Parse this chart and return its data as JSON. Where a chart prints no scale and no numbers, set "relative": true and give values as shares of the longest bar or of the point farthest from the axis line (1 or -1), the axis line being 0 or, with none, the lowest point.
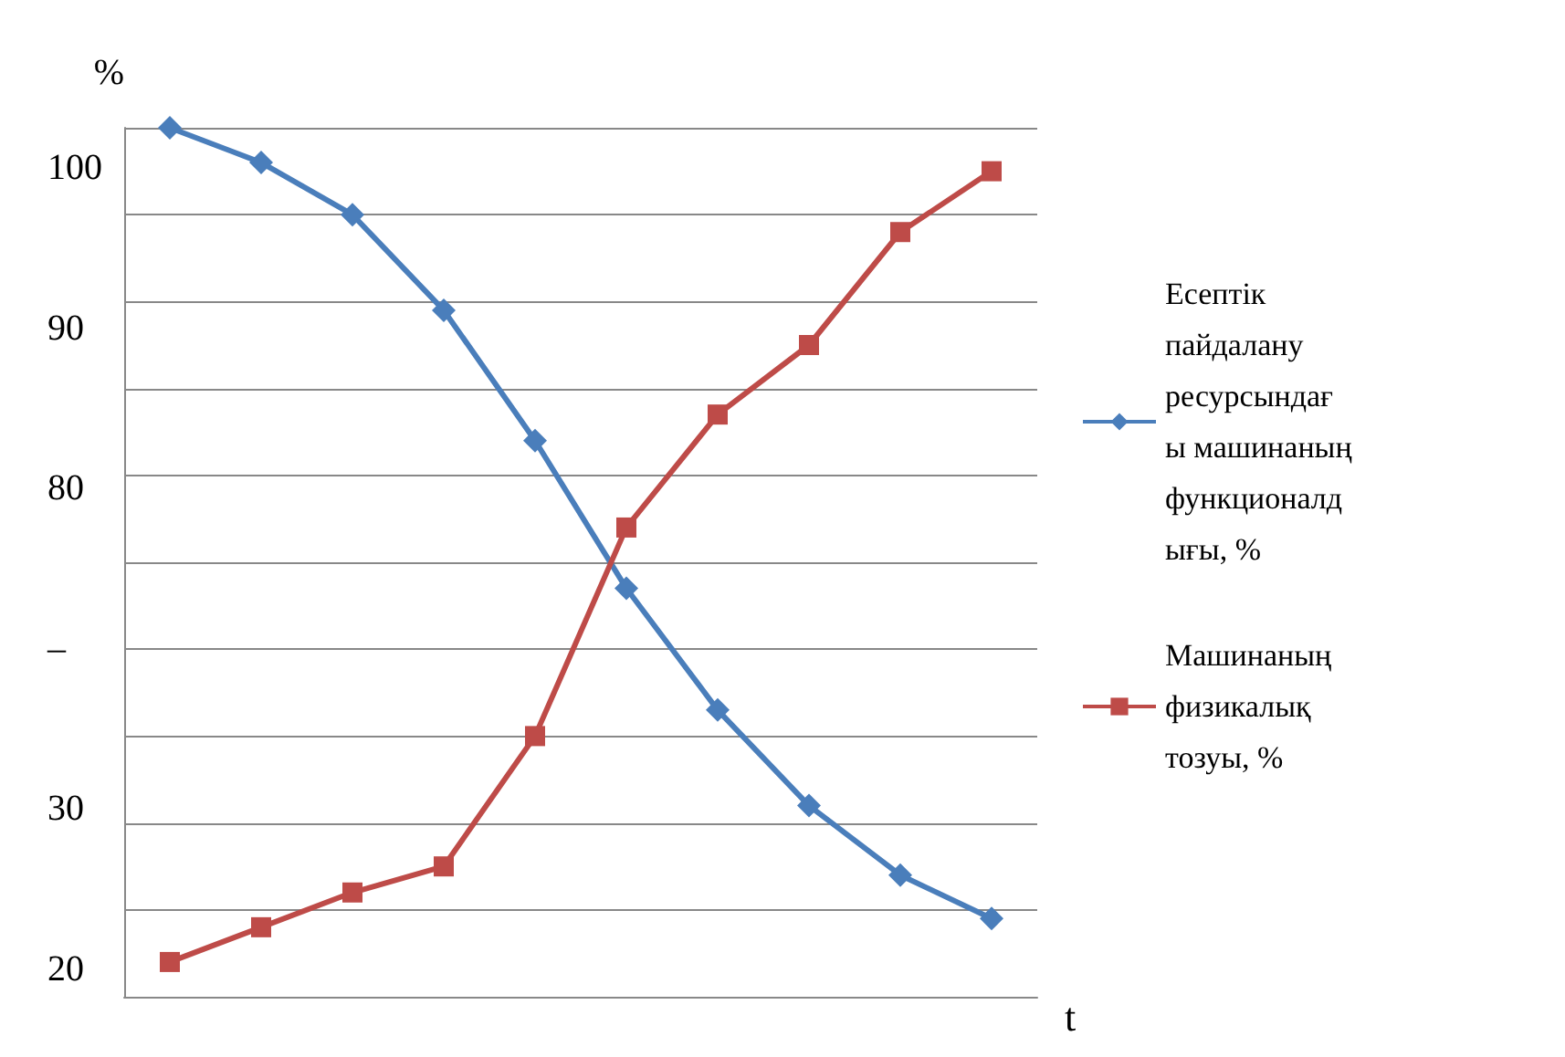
{
  "chart_data": {
    "type": "line",
    "relative": true,
    "ylabel": "%",
    "xlabel": "t",
    "categories": [
      null,
      null,
      null,
      null,
      null,
      null,
      null,
      null,
      null,
      null
    ],
    "series": [
      {
        "name": "Есептік пайдалану ресурсындағы машинаның функционалдығы, %",
        "color": "#4a7ebb",
        "marker": "diamond",
        "values": [
          1,
          0.96,
          0.9,
          0.79,
          0.64,
          0.47,
          0.33,
          0.22,
          0.14,
          0.09
        ]
      },
      {
        "name": "Машинаның физикалық тозуы, %",
        "color": "#be4b48",
        "marker": "square",
        "values": [
          0.04,
          0.08,
          0.12,
          0.15,
          0.3,
          0.54,
          0.67,
          0.75,
          0.88,
          0.95
        ]
      }
    ],
    "annotations": [
      "100",
      "90",
      "80",
      "–",
      "30",
      "20"
    ],
    "grid": "y",
    "legend": "right"
  }
}
